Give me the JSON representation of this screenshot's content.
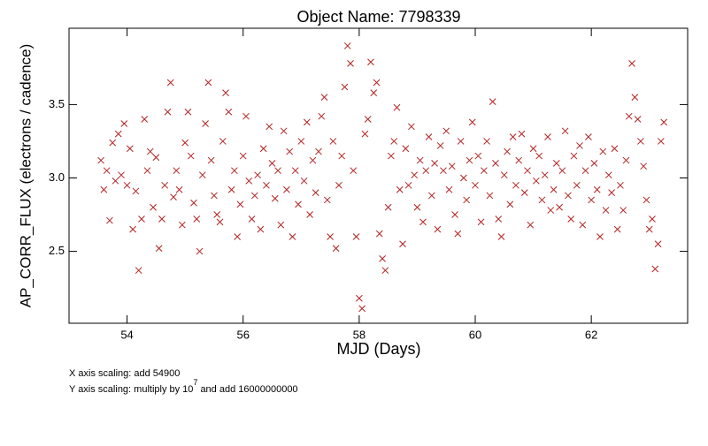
{
  "chart_data": {
    "type": "scatter",
    "title": "Object Name:  7798339",
    "xlabel": "MJD (Days)",
    "ylabel": "AP_CORR_FLUX (electrons / cadence)",
    "notes": [
      "X axis scaling: add 54900",
      "Y axis scaling: multiply by 10",
      "7",
      "and add 16000000000"
    ],
    "color": "#b22222",
    "xlim": [
      53.0,
      63.66
    ],
    "ylim": [
      2.01,
      4.02
    ],
    "xticks": [
      54,
      56,
      58,
      60,
      62
    ],
    "yticks": [
      2.5,
      {
        "value": 3.0,
        "label": "3.0"
      },
      3.5
    ],
    "x": [
      53.55,
      53.6,
      53.65,
      53.7,
      53.75,
      53.8,
      53.85,
      53.9,
      53.95,
      54.0,
      54.05,
      54.1,
      54.15,
      54.2,
      54.25,
      54.3,
      54.35,
      54.4,
      54.45,
      54.5,
      54.55,
      54.6,
      54.65,
      54.7,
      54.75,
      54.8,
      54.85,
      54.9,
      54.95,
      55.0,
      55.05,
      55.1,
      55.15,
      55.2,
      55.25,
      55.3,
      55.35,
      55.4,
      55.45,
      55.5,
      55.55,
      55.6,
      55.65,
      55.7,
      55.75,
      55.8,
      55.85,
      55.9,
      55.95,
      56.0,
      56.05,
      56.1,
      56.15,
      56.2,
      56.25,
      56.3,
      56.35,
      56.4,
      56.45,
      56.5,
      56.55,
      56.6,
      56.65,
      56.7,
      56.75,
      56.8,
      56.85,
      56.9,
      56.95,
      57.0,
      57.05,
      57.1,
      57.15,
      57.2,
      57.25,
      57.3,
      57.35,
      57.4,
      57.45,
      57.5,
      57.55,
      57.6,
      57.65,
      57.7,
      57.75,
      57.8,
      57.85,
      57.9,
      57.95,
      58.0,
      58.05,
      58.1,
      58.15,
      58.2,
      58.25,
      58.3,
      58.35,
      58.4,
      58.45,
      58.5,
      58.55,
      58.6,
      58.65,
      58.7,
      58.75,
      58.8,
      58.85,
      58.9,
      58.95,
      59.0,
      59.05,
      59.1,
      59.15,
      59.2,
      59.25,
      59.3,
      59.35,
      59.4,
      59.45,
      59.5,
      59.55,
      59.6,
      59.65,
      59.7,
      59.75,
      59.8,
      59.85,
      59.9,
      59.95,
      60.0,
      60.05,
      60.1,
      60.15,
      60.2,
      60.25,
      60.3,
      60.35,
      60.4,
      60.45,
      60.5,
      60.55,
      60.6,
      60.65,
      60.7,
      60.75,
      60.8,
      60.85,
      60.9,
      60.95,
      61.0,
      61.05,
      61.1,
      61.15,
      61.2,
      61.25,
      61.3,
      61.35,
      61.4,
      61.45,
      61.5,
      61.55,
      61.6,
      61.65,
      61.7,
      61.75,
      61.8,
      61.85,
      61.9,
      61.95,
      62.0,
      62.05,
      62.1,
      62.15,
      62.2,
      62.25,
      62.3,
      62.35,
      62.4,
      62.45,
      62.5,
      62.55,
      62.6,
      62.65,
      62.7,
      62.75,
      62.8,
      62.85,
      62.9,
      62.95,
      63.0,
      63.05,
      63.1,
      63.15,
      63.2,
      63.25
    ],
    "values": [
      3.12,
      2.92,
      3.05,
      2.71,
      3.24,
      2.98,
      3.3,
      3.02,
      3.37,
      2.95,
      3.2,
      2.65,
      2.91,
      2.37,
      2.72,
      3.4,
      3.05,
      3.18,
      2.8,
      3.14,
      2.52,
      2.72,
      2.95,
      3.45,
      3.65,
      2.87,
      3.05,
      2.92,
      2.68,
      3.24,
      3.45,
      3.15,
      2.83,
      2.72,
      2.5,
      3.02,
      3.37,
      3.65,
      3.12,
      2.88,
      2.75,
      2.7,
      3.25,
      3.58,
      3.45,
      2.92,
      3.05,
      2.6,
      2.82,
      3.15,
      3.42,
      2.98,
      2.72,
      2.88,
      3.02,
      2.65,
      3.2,
      2.95,
      3.35,
      3.1,
      2.86,
      3.05,
      2.68,
      3.32,
      2.92,
      3.18,
      2.6,
      3.05,
      2.82,
      3.25,
      2.98,
      3.38,
      2.75,
      3.12,
      2.9,
      3.18,
      3.42,
      3.55,
      2.85,
      2.6,
      3.25,
      2.52,
      2.95,
      3.15,
      3.62,
      3.9,
      3.78,
      3.05,
      2.6,
      2.18,
      2.11,
      3.3,
      3.4,
      3.79,
      3.58,
      3.65,
      2.62,
      2.45,
      2.37,
      2.8,
      3.15,
      3.25,
      3.48,
      2.92,
      2.55,
      3.2,
      2.95,
      3.35,
      3.02,
      2.8,
      3.12,
      2.7,
      3.05,
      3.28,
      2.88,
      3.1,
      2.65,
      3.22,
      3.05,
      3.32,
      2.92,
      3.08,
      2.75,
      2.62,
      3.25,
      3.0,
      2.85,
      3.12,
      3.38,
      2.95,
      3.15,
      2.7,
      3.05,
      3.25,
      2.88,
      3.52,
      3.1,
      2.72,
      2.6,
      3.02,
      3.18,
      2.82,
      3.28,
      2.95,
      3.12,
      3.3,
      2.9,
      3.05,
      2.68,
      3.2,
      2.98,
      3.15,
      2.85,
      3.02,
      3.28,
      2.78,
      2.92,
      3.1,
      2.8,
      3.05,
      3.32,
      2.88,
      2.72,
      3.15,
      2.95,
      3.22,
      2.68,
      3.05,
      3.28,
      2.85,
      3.1,
      2.92,
      2.6,
      3.18,
      2.78,
      3.02,
      2.9,
      3.2,
      2.65,
      2.95,
      2.78,
      3.12,
      3.42,
      3.78,
      3.55,
      3.4,
      3.25,
      3.08,
      2.85,
      2.65,
      2.72,
      2.38,
      2.55,
      3.25,
      3.38
    ]
  }
}
